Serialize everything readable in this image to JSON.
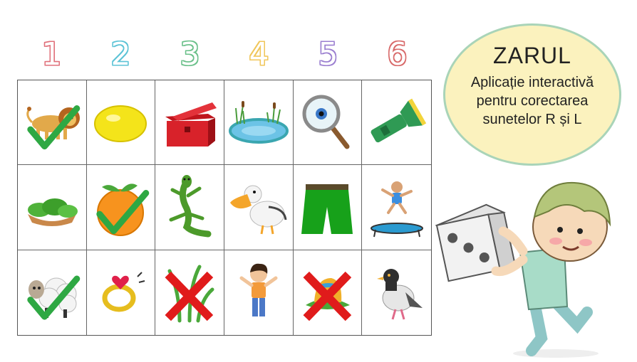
{
  "numbers": [
    "1",
    "2",
    "3",
    "4",
    "5",
    "6"
  ],
  "colors": {
    "number_1": "#e0707a",
    "number_2": "#5cc3d6",
    "number_3": "#6bc08a",
    "number_4": "#f0c65a",
    "number_5": "#9b7fd0",
    "number_6": "#d86a6a",
    "check": "#2ea843",
    "cross": "#e01b1b",
    "badge_fill": "#fbf2be",
    "badge_border": "#a9d4b8"
  },
  "badge": {
    "title": "ZARUL",
    "subtitle_lines": [
      "Aplicație interactivă",
      "pentru corectarea",
      "sunetelor R și L"
    ]
  },
  "grid": [
    [
      {
        "icon": "lion-icon",
        "mark": "check"
      },
      {
        "icon": "lemon-icon",
        "mark": "none"
      },
      {
        "icon": "red-chest-icon",
        "mark": "none"
      },
      {
        "icon": "pond-icon",
        "mark": "none"
      },
      {
        "icon": "magnifier-icon",
        "mark": "none"
      },
      {
        "icon": "flashlight-icon",
        "mark": "none"
      }
    ],
    [
      {
        "icon": "lettuce-bowl-icon",
        "mark": "none"
      },
      {
        "icon": "orange-icon",
        "mark": "check"
      },
      {
        "icon": "lizard-icon",
        "mark": "none"
      },
      {
        "icon": "pelican-icon",
        "mark": "none"
      },
      {
        "icon": "green-shorts-icon",
        "mark": "none"
      },
      {
        "icon": "trampoline-child-icon",
        "mark": "none"
      }
    ],
    [
      {
        "icon": "sheep-icon",
        "mark": "check"
      },
      {
        "icon": "ring-icon",
        "mark": "none"
      },
      {
        "icon": "grass-icon",
        "mark": "cross"
      },
      {
        "icon": "boy-icon",
        "mark": "none"
      },
      {
        "icon": "hat-icon",
        "mark": "cross"
      },
      {
        "icon": "pigeon-icon",
        "mark": "none"
      }
    ]
  ],
  "illustration": "boy-holding-dice-icon"
}
